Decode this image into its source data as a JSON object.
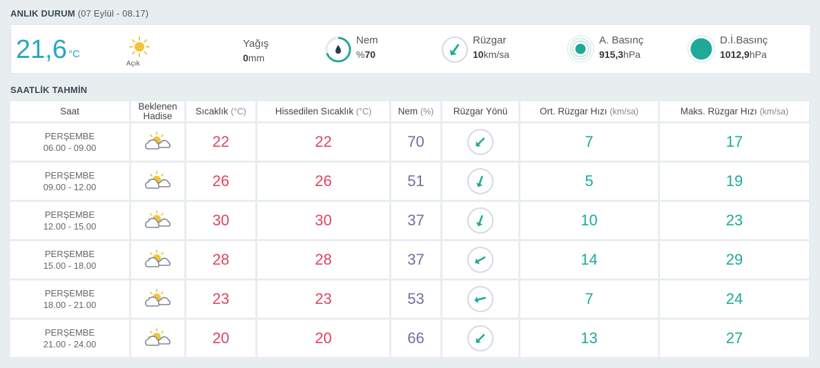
{
  "current": {
    "title": "ANLIK DURUM",
    "subtitle": "(07 Eylül - 08.17)",
    "temperature": "21,6",
    "temperature_unit": "°C",
    "condition_icon": "sun-icon",
    "condition": "Açık",
    "precip_label": "Yağış",
    "precip_value": "0",
    "precip_unit": "mm",
    "humidity_label": "Nem",
    "humidity_prefix": "%",
    "humidity_value": "70",
    "humidity_level": 0.7,
    "wind_label": "Rüzgar",
    "wind_value": "10",
    "wind_unit": "km/sa",
    "pressure_label": "A. Basınç",
    "pressure_value": "915,3",
    "pressure_unit": "hPa",
    "sea_pressure_label": "D.İ.Basınç",
    "sea_pressure_value": "1012,9",
    "sea_pressure_unit": "hPa"
  },
  "forecast": {
    "title": "SAATLİK TAHMİN",
    "headers": {
      "saat": "Saat",
      "hadise": "Beklenen Hadise",
      "sicaklik": "Sıcaklık",
      "sicaklik_unit": "(°C)",
      "hissedilen": "Hissedilen Sıcaklık",
      "hissedilen_unit": "(°C)",
      "nem": "Nem",
      "nem_unit": "(%)",
      "yon": "Rüzgar Yönü",
      "ort": "Ort. Rüzgar Hızı",
      "ort_unit": "(km/sa)",
      "maks": "Maks. Rüzgar Hızı",
      "maks_unit": "(km/sa)"
    },
    "rows": [
      {
        "day": "PERŞEMBE",
        "time": "06.00 - 09.00",
        "icon": "partly-cloudy-icon",
        "temp": "22",
        "feels": "22",
        "humidity": "70",
        "wind_dir_deg": 225,
        "avg": "7",
        "max": "17"
      },
      {
        "day": "PERŞEMBE",
        "time": "09.00 - 12.00",
        "icon": "partly-cloudy-icon",
        "temp": "26",
        "feels": "26",
        "humidity": "51",
        "wind_dir_deg": 200,
        "avg": "5",
        "max": "19"
      },
      {
        "day": "PERŞEMBE",
        "time": "12.00 - 15.00",
        "icon": "partly-cloudy-icon",
        "temp": "30",
        "feels": "30",
        "humidity": "37",
        "wind_dir_deg": 200,
        "avg": "10",
        "max": "23"
      },
      {
        "day": "PERŞEMBE",
        "time": "15.00 - 18.00",
        "icon": "partly-cloudy-icon",
        "temp": "28",
        "feels": "28",
        "humidity": "37",
        "wind_dir_deg": 240,
        "avg": "14",
        "max": "29"
      },
      {
        "day": "PERŞEMBE",
        "time": "18.00 - 21.00",
        "icon": "partly-cloudy-icon",
        "temp": "23",
        "feels": "23",
        "humidity": "53",
        "wind_dir_deg": 255,
        "avg": "7",
        "max": "24"
      },
      {
        "day": "PERŞEMBE",
        "time": "21.00 - 24.00",
        "icon": "partly-cloudy-icon",
        "temp": "20",
        "feels": "20",
        "humidity": "66",
        "wind_dir_deg": 225,
        "avg": "13",
        "max": "27"
      }
    ]
  },
  "colors": {
    "accent": "#29a6c2",
    "teal": "#1fa998",
    "temp_red": "#e04460",
    "humidity_purple": "#7a6aa0",
    "sun_yellow": "#f5c33b"
  }
}
